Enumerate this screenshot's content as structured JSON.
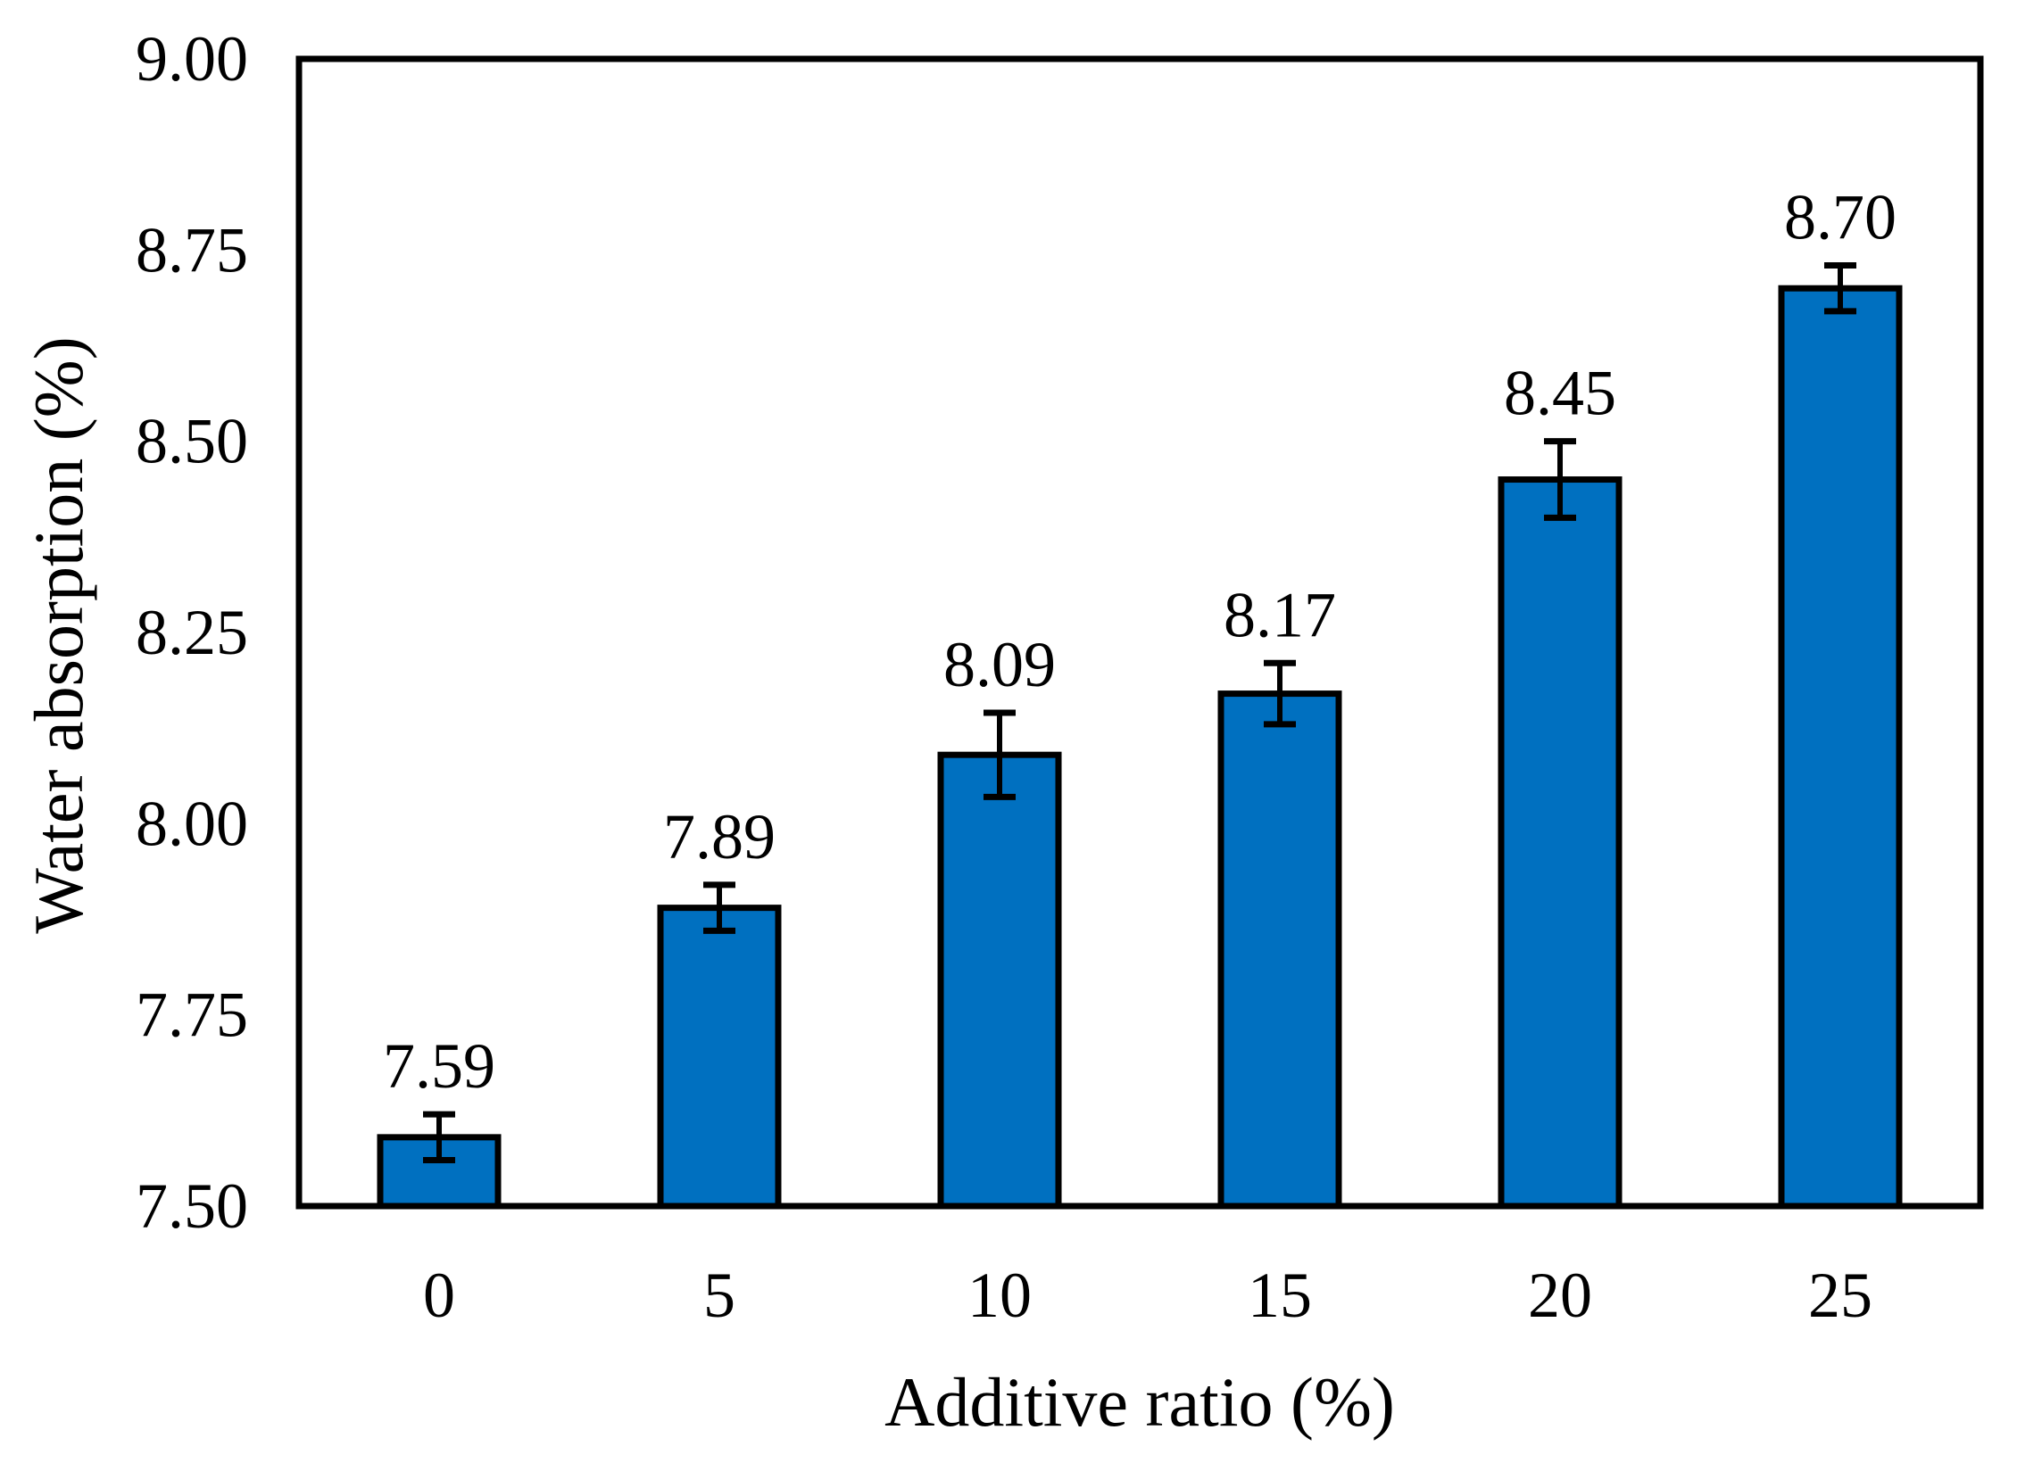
{
  "figure": {
    "background": "#ffffff",
    "bar_fill": "#0070C0",
    "bar_stroke": "#000000",
    "axis_color": "#000000",
    "error_bar_color": "#000000",
    "text_color": "#000000"
  },
  "chart_data": {
    "type": "bar",
    "title": "",
    "xlabel": "Additive ratio (%)",
    "ylabel": "Water absorption (%)",
    "categories": [
      "0",
      "5",
      "10",
      "15",
      "20",
      "25"
    ],
    "values": [
      7.59,
      7.89,
      8.09,
      8.17,
      8.45,
      8.7
    ],
    "data_labels": [
      "7.59",
      "7.89",
      "8.09",
      "8.17",
      "8.45",
      "8.70"
    ],
    "error_bars": [
      0.03,
      0.03,
      0.055,
      0.04,
      0.05,
      0.03
    ],
    "ylim": [
      7.5,
      9.0
    ],
    "y_tick_step": 0.25,
    "y_tick_labels": [
      "7.50",
      "7.75",
      "8.00",
      "8.25",
      "8.50",
      "8.75",
      "9.00"
    ],
    "x_tick_labels": [
      "0",
      "5",
      "10",
      "15",
      "20",
      "25"
    ],
    "grid": false,
    "legend": null
  }
}
